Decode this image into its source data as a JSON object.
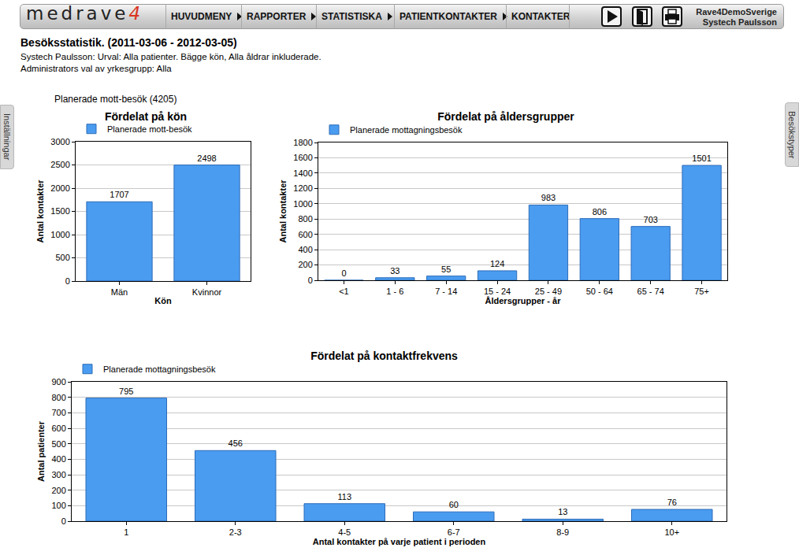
{
  "header": {
    "logo": "medrave",
    "logo_suffix": "4",
    "menu": [
      {
        "label": "HUVUDMENY",
        "submenu": true
      },
      {
        "label": "RAPPORTER",
        "submenu": true
      },
      {
        "label": "STATISTISKA",
        "submenu": true
      },
      {
        "label": "PATIENTKONTAKTER",
        "submenu": true
      },
      {
        "label": "KONTAKTER",
        "submenu": false
      }
    ],
    "user": [
      "Rave4DemoSverige",
      "Systech Paulsson"
    ]
  },
  "page": {
    "title": "Besöksstatistik. (2011-03-06 - 2012-03-05)",
    "lines": [
      "Systech Paulsson: Urval: Alla patienter. Bägge kön, Alla åldrar inkluderade.",
      "Administrators val av yrkesgrupp: Alla"
    ],
    "side_tabs": {
      "left": "Inställningar",
      "right": "Besökstyper"
    },
    "summary": "Planerade mott-besök (4205)"
  },
  "chart_data": [
    {
      "type": "bar",
      "title": "Fördelat på kön",
      "xlabel": "Kön",
      "ylabel": "Antal kontakter",
      "categories": [
        "Män",
        "Kvinnor"
      ],
      "series": [
        {
          "name": "Planerade mott-besök",
          "color": "#4a9cf0",
          "values": [
            1707,
            2498
          ]
        }
      ],
      "ylim": [
        0,
        3000
      ],
      "yticks": [
        0,
        500,
        1000,
        1500,
        2000,
        2500,
        3000
      ],
      "grid": true,
      "data_labels": true,
      "legend": "top left"
    },
    {
      "type": "bar",
      "title": "Fördelat på åldersgrupper",
      "xlabel": "Åldersgrupper - år",
      "ylabel": "Antal kontakter",
      "categories": [
        "<1",
        "1 - 6",
        "7 - 14",
        "15 - 24",
        "25 - 49",
        "50 - 64",
        "65 - 74",
        "75+"
      ],
      "series": [
        {
          "name": "Planerade mottagningsbesök",
          "color": "#4a9cf0",
          "values": [
            0,
            33,
            55,
            124,
            983,
            806,
            703,
            1501
          ]
        }
      ],
      "ylim": [
        0,
        1800
      ],
      "yticks": [
        0,
        200,
        400,
        600,
        800,
        1000,
        1200,
        1400,
        1600,
        1800
      ],
      "grid": true,
      "data_labels": true,
      "legend": "top left"
    },
    {
      "type": "bar",
      "title": "Fördelat på kontaktfrekvens",
      "xlabel": "Antal kontakter på varje patient i perioden",
      "ylabel": "Antal patienter",
      "categories": [
        "1",
        "2-3",
        "4-5",
        "6-7",
        "8-9",
        "10+"
      ],
      "series": [
        {
          "name": "Planerade mottagningsbesök",
          "color": "#4a9cf0",
          "values": [
            795,
            456,
            113,
            60,
            13,
            76
          ]
        }
      ],
      "ylim": [
        0,
        900
      ],
      "yticks": [
        0,
        100,
        200,
        300,
        400,
        500,
        600,
        700,
        800,
        900
      ],
      "grid": true,
      "data_labels": true,
      "legend": "top left"
    }
  ]
}
